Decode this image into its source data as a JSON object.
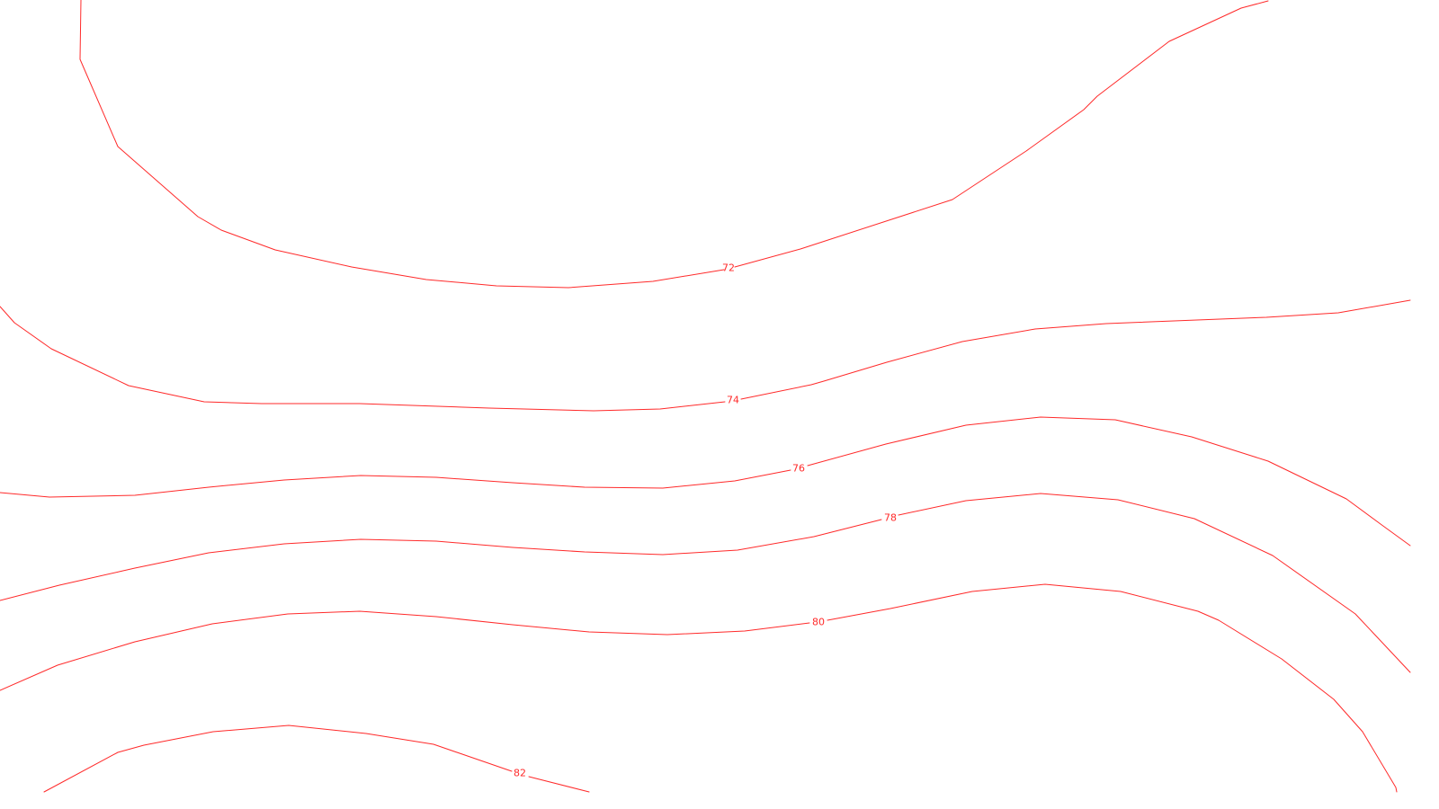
{
  "map": {
    "line_color": "#ff2a2a",
    "background_color": "#ffffff",
    "contours": [
      {
        "id": "contour-72",
        "label": "72"
      },
      {
        "id": "contour-74",
        "label": "74"
      },
      {
        "id": "contour-76",
        "label": "76"
      },
      {
        "id": "contour-78",
        "label": "78"
      },
      {
        "id": "contour-80",
        "label": "80"
      },
      {
        "id": "contour-82",
        "label": "82"
      }
    ]
  }
}
